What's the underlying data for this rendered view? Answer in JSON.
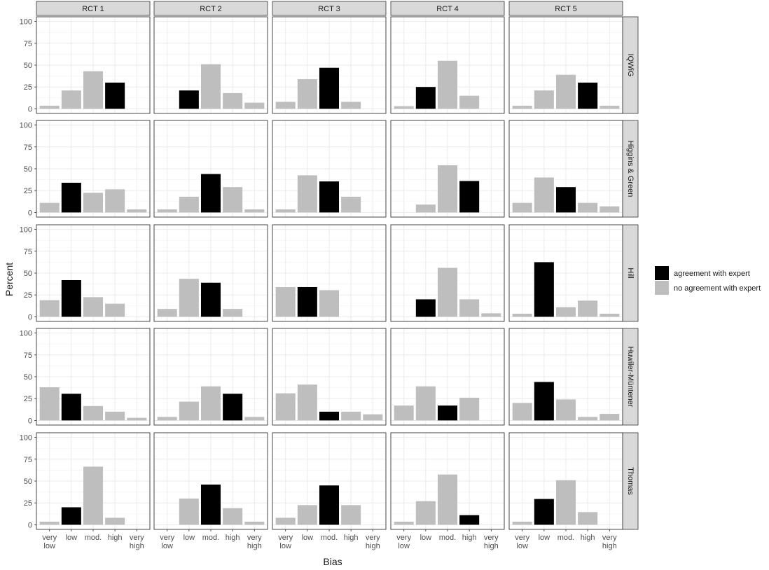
{
  "chart_data": {
    "type": "bar",
    "layout": "facet grid",
    "categories": [
      "very low",
      "low",
      "mod.",
      "high",
      "very high"
    ],
    "category_display": [
      [
        "very",
        "low"
      ],
      [
        "low"
      ],
      [
        "mod."
      ],
      [
        "high"
      ],
      [
        "very",
        "high"
      ]
    ],
    "columns": [
      "RCT 1",
      "RCT 2",
      "RCT 3",
      "RCT 4",
      "RCT 5"
    ],
    "rows": [
      "IQWiG",
      "Higgins & Green",
      "Hill",
      "Huwiler-Müntener",
      "Thomas"
    ],
    "xlabel": "Bias",
    "ylabel": "Percent",
    "ylim": [
      0,
      100
    ],
    "yticks": [
      0,
      25,
      50,
      75,
      100
    ],
    "grid": true,
    "legend": {
      "position": "right",
      "entries": [
        {
          "key": "agree",
          "label": "agreement with expert",
          "color": "#000000"
        },
        {
          "key": "no",
          "label": "no agreement with expert",
          "color": "#bebebe"
        }
      ]
    },
    "panels": [
      [
        {
          "values": [
            3.5,
            21,
            43,
            30,
            0
          ],
          "agree": 3
        },
        {
          "values": [
            0,
            21,
            51,
            18,
            7
          ],
          "agree": 1
        },
        {
          "values": [
            8,
            34,
            47,
            8,
            0
          ],
          "agree": 2
        },
        {
          "values": [
            3,
            25,
            55,
            15,
            0
          ],
          "agree": 1
        },
        {
          "values": [
            3.5,
            21,
            39,
            30,
            3.5
          ],
          "agree": 3
        }
      ],
      [
        {
          "values": [
            11,
            34,
            22.5,
            26.5,
            3.5
          ],
          "agree": 1
        },
        {
          "values": [
            3.5,
            18,
            44,
            29,
            3.5
          ],
          "agree": 2
        },
        {
          "values": [
            3.5,
            42.5,
            35.5,
            18,
            0
          ],
          "agree": 2
        },
        {
          "values": [
            0,
            9,
            54,
            36,
            0
          ],
          "agree": 3
        },
        {
          "values": [
            11,
            40,
            29,
            11,
            7
          ],
          "agree": 2
        }
      ],
      [
        {
          "values": [
            19,
            42,
            22.5,
            15,
            0
          ],
          "agree": 1
        },
        {
          "values": [
            9,
            43.5,
            39,
            9,
            0
          ],
          "agree": 2
        },
        {
          "values": [
            34,
            34,
            30.5,
            0,
            0
          ],
          "agree": 1
        },
        {
          "values": [
            0,
            20,
            56,
            20,
            4
          ],
          "agree": 1
        },
        {
          "values": [
            3.5,
            62.5,
            11,
            18.5,
            3.5
          ],
          "agree": 1
        }
      ],
      [
        {
          "values": [
            38,
            30.5,
            16.5,
            10,
            3
          ],
          "agree": 1
        },
        {
          "values": [
            4,
            21.5,
            39,
            30.5,
            4
          ],
          "agree": 3
        },
        {
          "values": [
            31,
            41,
            10,
            10,
            7
          ],
          "agree": 2
        },
        {
          "values": [
            17,
            39,
            17,
            26,
            0
          ],
          "agree": 2
        },
        {
          "values": [
            20,
            44,
            24,
            4,
            7.5
          ],
          "agree": 1
        }
      ],
      [
        {
          "values": [
            3.5,
            20,
            66.5,
            8,
            0
          ],
          "agree": 1
        },
        {
          "values": [
            0,
            30,
            46,
            19,
            3.5
          ],
          "agree": 2
        },
        {
          "values": [
            8,
            22.5,
            45,
            22.5,
            0
          ],
          "agree": 2
        },
        {
          "values": [
            3.5,
            27,
            57.5,
            11,
            0
          ],
          "agree": 3
        },
        {
          "values": [
            3.5,
            29.5,
            51,
            14.5,
            0
          ],
          "agree": 1
        }
      ]
    ]
  }
}
